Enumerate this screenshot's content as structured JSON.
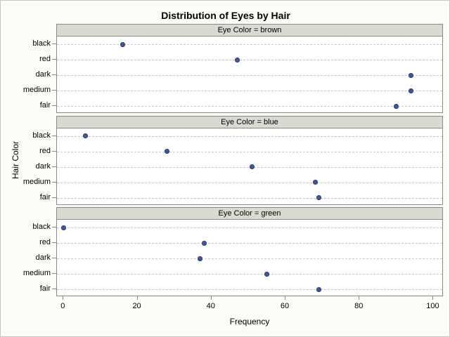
{
  "chart_data": {
    "type": "scatter",
    "subtype": "paneled-dot-plot",
    "title": "Distribution of Eyes by Hair",
    "xlabel": "Frequency",
    "ylabel": "Hair Color",
    "xlim": [
      0,
      100
    ],
    "x_ticks": [
      0,
      20,
      40,
      60,
      80,
      100
    ],
    "grid": "horizontal-dashed",
    "legend": "none",
    "categories_top_to_bottom": [
      "black",
      "red",
      "dark",
      "medium",
      "fair"
    ],
    "panels": [
      {
        "label": "Eye Color = brown",
        "eye_color": "brown",
        "values": [
          16,
          47,
          94,
          94,
          90
        ]
      },
      {
        "label": "Eye Color = blue",
        "eye_color": "blue",
        "values": [
          6,
          28,
          51,
          68,
          69
        ]
      },
      {
        "label": "Eye Color = green",
        "eye_color": "green",
        "values": [
          0,
          38,
          37,
          55,
          69
        ]
      }
    ],
    "colors": {
      "marker": "#445694",
      "marker_edge": "#33406F",
      "panel_header_bg": "#D9DBD3",
      "frame": "#898989",
      "grid": "#C8C8C8",
      "background": "#FBFBF8",
      "outer_border": "#C6C6C6",
      "text": "#000000"
    }
  }
}
